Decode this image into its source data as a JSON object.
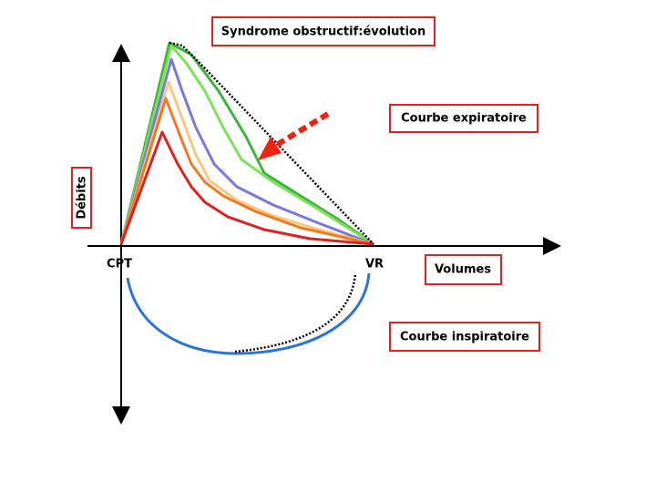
{
  "title": "Syndrome obstructif:évolution",
  "labels": {
    "expiratory": "Courbe expiratoire",
    "flow_axis": "Débits",
    "start_volume": "CPT",
    "end_volume": "VR",
    "volume_axis": "Volumes",
    "inspiratory": "Courbe inspiratoire"
  }
}
